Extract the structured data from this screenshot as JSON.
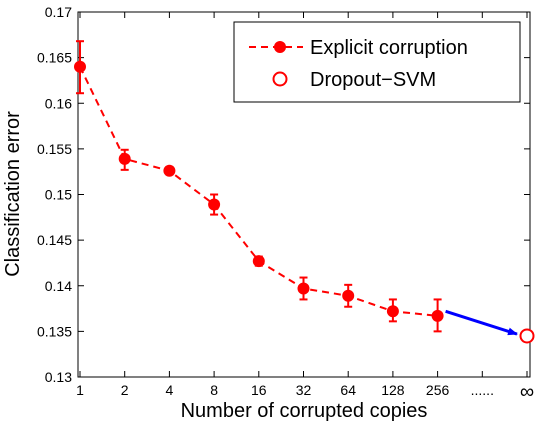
{
  "chart_data": {
    "type": "line",
    "xlabel": "Number of corrupted copies",
    "ylabel": "Classification error",
    "ylim": [
      0.13,
      0.17
    ],
    "yticks": [
      0.13,
      0.135,
      0.14,
      0.145,
      0.15,
      0.155,
      0.16,
      0.165,
      0.17
    ],
    "categories": [
      "1",
      "2",
      "4",
      "8",
      "16",
      "32",
      "64",
      "128",
      "256",
      "......",
      "∞"
    ],
    "grid": false,
    "legend_position": "top-right",
    "series": [
      {
        "name": "Explicit corruption",
        "color": "#ff0000",
        "style": "dashed-line-filled-circle",
        "x": [
          "1",
          "2",
          "4",
          "8",
          "16",
          "32",
          "64",
          "128",
          "256"
        ],
        "values": [
          0.164,
          0.1539,
          0.1526,
          0.1489,
          0.1427,
          0.1397,
          0.1389,
          0.1372,
          0.1367
        ],
        "error_low": [
          0.1611,
          0.1527,
          0.1522,
          0.1478,
          0.1422,
          0.1385,
          0.1377,
          0.1361,
          0.135
        ],
        "error_high": [
          0.1668,
          0.1549,
          0.153,
          0.15,
          0.1432,
          0.1409,
          0.1401,
          0.1385,
          0.1385
        ]
      },
      {
        "name": "Dropout−SVM",
        "color": "#ff0000",
        "style": "open-circle",
        "x": [
          "∞"
        ],
        "values": [
          0.1345
        ]
      }
    ],
    "annotations": [
      {
        "type": "arrow",
        "color": "#0000ff",
        "from": {
          "x": "256",
          "y": 0.1372
        },
        "to": {
          "x": "∞",
          "y": 0.1347
        }
      }
    ]
  }
}
